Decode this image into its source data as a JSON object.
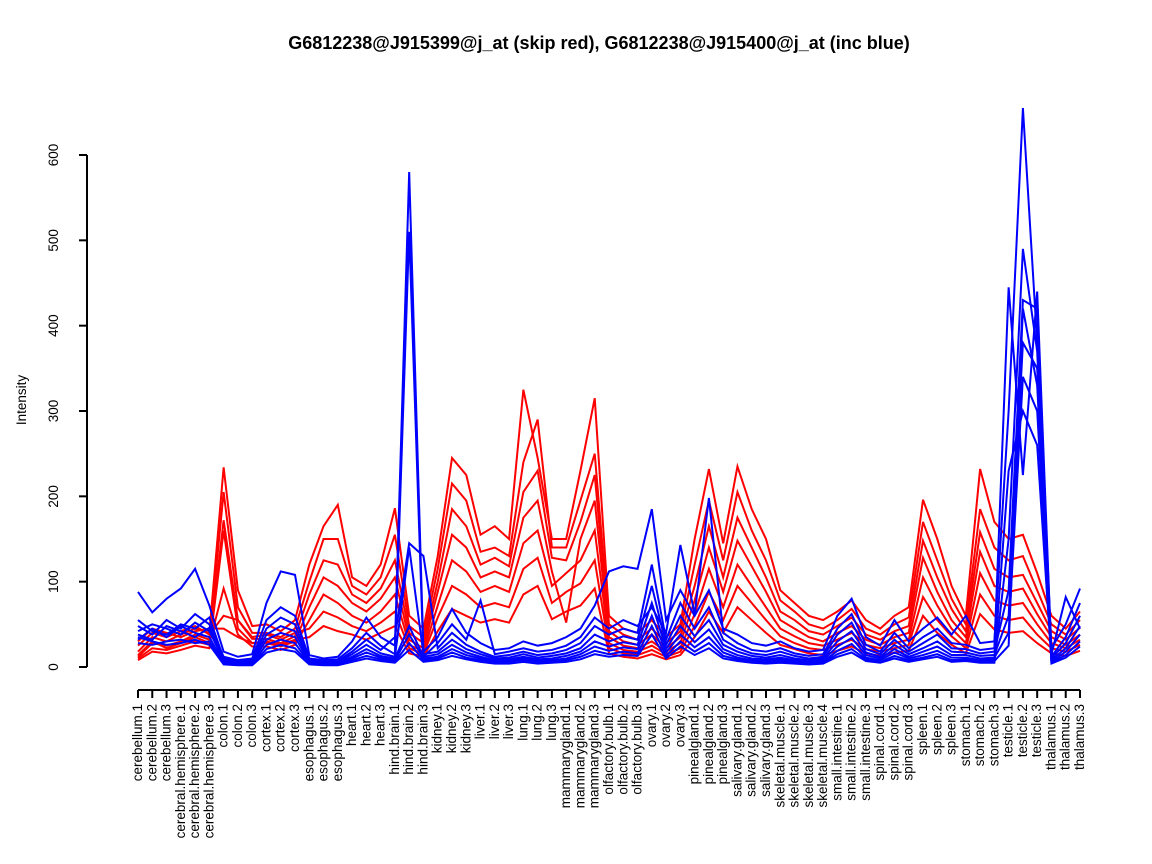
{
  "chart_data": {
    "type": "line",
    "title": "G6812238@J915399@j_at (skip red), G6812238@J915400@j_at (inc blue)",
    "xlabel": "",
    "ylabel": "Intensity",
    "ylim": [
      0,
      660
    ],
    "yticks": [
      0,
      100,
      200,
      300,
      400,
      500,
      600
    ],
    "grid": false,
    "legend": "none",
    "legend_note_red": "G6812238@J915399@j_at (skip red)",
    "legend_note_blue": "G6812238@J915400@j_at (inc blue)",
    "colors": {
      "red": "#FF0000",
      "blue": "#0000FF",
      "axis": "#000000"
    },
    "categories": [
      "cerebellum.1",
      "cerebellum.2",
      "cerebellum.3",
      "cerebral.hemisphere.1",
      "cerebral.hemisphere.2",
      "cerebral.hemisphere.3",
      "colon.1",
      "colon.2",
      "colon.3",
      "cortex.1",
      "cortex.2",
      "cortex.3",
      "esophagus.1",
      "esophagus.2",
      "esophagus.3",
      "heart.1",
      "heart.2",
      "heart.3",
      "hind.brain.1",
      "hind.brain.2",
      "hind.brain.3",
      "kidney.1",
      "kidney.2",
      "kidney.3",
      "liver.1",
      "liver.2",
      "liver.3",
      "lung.1",
      "lung.2",
      "lung.3",
      "mammarygland.1",
      "mammarygland.2",
      "mammarygland.3",
      "olfactory.bulb.1",
      "olfactory.bulb.2",
      "olfactory.bulb.3",
      "ovary.1",
      "ovary.2",
      "ovary.3",
      "pinealgland.1",
      "pinealgland.2",
      "pinealgland.3",
      "salivary.gland.1",
      "salivary.gland.2",
      "salivary.gland.3",
      "skeletal.muscle.1",
      "skeletal.muscle.2",
      "skeletal.muscle.3",
      "skeletal.muscle.4",
      "small.intestine.1",
      "small.intestine.2",
      "small.intestine.3",
      "spinal.cord.1",
      "spinal.cord.2",
      "spinal.cord.3",
      "spleen.1",
      "spleen.2",
      "spleen.3",
      "stomach.1",
      "stomach.2",
      "stomach.3",
      "testicle.1",
      "testicle.2",
      "testicle.3",
      "thalamus.1",
      "thalamus.2",
      "thalamus.3"
    ],
    "series": [
      {
        "name": "red-1",
        "probeset": "G6812238@J915399@j_at",
        "color": "#FF0000",
        "values": [
          18,
          35,
          30,
          38,
          45,
          40,
          234,
          90,
          48,
          50,
          42,
          55,
          120,
          165,
          190,
          105,
          95,
          120,
          186,
          60,
          45,
          130,
          245,
          225,
          155,
          165,
          150,
          325,
          245,
          150,
          150,
          230,
          315,
          60,
          45,
          40,
          55,
          35,
          50,
          150,
          232,
          145,
          235,
          185,
          150,
          90,
          75,
          60,
          55,
          65,
          78,
          55,
          45,
          60,
          70,
          196,
          150,
          95,
          60,
          232,
          170,
          150,
          155,
          110,
          60,
          45,
          65
        ]
      },
      {
        "name": "red-2",
        "probeset": "G6812238@J915399@j_at",
        "color": "#FF0000",
        "values": [
          12,
          28,
          25,
          30,
          38,
          32,
          205,
          70,
          40,
          40,
          35,
          45,
          100,
          150,
          150,
          95,
          85,
          105,
          155,
          48,
          35,
          115,
          215,
          195,
          135,
          140,
          130,
          240,
          290,
          140,
          140,
          195,
          250,
          50,
          38,
          32,
          45,
          28,
          42,
          120,
          195,
          125,
          205,
          160,
          125,
          78,
          65,
          50,
          45,
          55,
          68,
          45,
          38,
          50,
          58,
          170,
          125,
          80,
          50,
          185,
          140,
          125,
          130,
          90,
          50,
          38,
          55
        ]
      },
      {
        "name": "red-3",
        "probeset": "G6812238@J915399@j_at",
        "color": "#FF0000",
        "values": [
          10,
          22,
          20,
          25,
          30,
          26,
          172,
          55,
          33,
          33,
          28,
          36,
          85,
          125,
          120,
          85,
          75,
          92,
          125,
          40,
          28,
          100,
          185,
          165,
          120,
          128,
          118,
          205,
          230,
          128,
          125,
          170,
          225,
          42,
          30,
          26,
          38,
          22,
          35,
          95,
          165,
          105,
          175,
          140,
          105,
          65,
          55,
          42,
          38,
          48,
          58,
          38,
          32,
          42,
          48,
          148,
          105,
          68,
          42,
          158,
          115,
          105,
          108,
          75,
          42,
          32,
          46
        ]
      },
      {
        "name": "red-4",
        "probeset": "G6812238@J915399@j_at",
        "color": "#FF0000",
        "values": [
          8,
          18,
          16,
          20,
          25,
          22,
          160,
          45,
          28,
          28,
          24,
          30,
          70,
          105,
          95,
          75,
          65,
          80,
          105,
          32,
          22,
          88,
          155,
          140,
          105,
          112,
          105,
          175,
          195,
          112,
          52,
          150,
          195,
          35,
          25,
          22,
          30,
          18,
          28,
          78,
          140,
          88,
          148,
          118,
          88,
          55,
          45,
          35,
          30,
          40,
          48,
          32,
          26,
          35,
          40,
          128,
          88,
          55,
          35,
          135,
          95,
          88,
          92,
          62,
          35,
          26,
          38
        ]
      },
      {
        "name": "red-5",
        "probeset": "G6812238@J915399@j_at",
        "color": "#FF0000",
        "values": [
          14,
          30,
          22,
          28,
          35,
          28,
          92,
          38,
          24,
          24,
          20,
          26,
          55,
          85,
          75,
          60,
          52,
          65,
          85,
          26,
          18,
          72,
          125,
          112,
          88,
          95,
          88,
          145,
          160,
          95,
          110,
          125,
          160,
          28,
          20,
          18,
          25,
          15,
          22,
          62,
          115,
          70,
          120,
          95,
          70,
          45,
          36,
          28,
          25,
          32,
          40,
          26,
          22,
          28,
          32,
          105,
          72,
          45,
          28,
          110,
          78,
          72,
          75,
          50,
          28,
          22,
          32
        ]
      },
      {
        "name": "red-6",
        "probeset": "G6812238@J915399@j_at",
        "color": "#FF0000",
        "values": [
          25,
          40,
          35,
          42,
          48,
          38,
          60,
          55,
          35,
          38,
          32,
          40,
          45,
          65,
          58,
          48,
          42,
          52,
          65,
          22,
          15,
          58,
          95,
          85,
          70,
          75,
          70,
          115,
          128,
          75,
          88,
          98,
          125,
          22,
          16,
          14,
          20,
          12,
          18,
          48,
          88,
          55,
          95,
          75,
          55,
          36,
          28,
          22,
          20,
          26,
          32,
          21,
          18,
          22,
          26,
          82,
          55,
          36,
          22,
          85,
          60,
          55,
          58,
          38,
          22,
          18,
          26
        ]
      },
      {
        "name": "red-7",
        "probeset": "G6812238@J915399@j_at",
        "color": "#FF0000",
        "values": [
          30,
          45,
          40,
          35,
          42,
          45,
          45,
          35,
          28,
          30,
          26,
          32,
          35,
          48,
          42,
          38,
          32,
          40,
          48,
          16,
          12,
          42,
          68,
          60,
          52,
          56,
          52,
          85,
          95,
          56,
          65,
          72,
          92,
          16,
          12,
          10,
          15,
          9,
          14,
          35,
          65,
          40,
          70,
          55,
          40,
          26,
          21,
          16,
          14,
          19,
          24,
          16,
          13,
          17,
          19,
          60,
          40,
          26,
          16,
          62,
          44,
          40,
          42,
          28,
          16,
          13,
          19
        ]
      },
      {
        "name": "blue-1",
        "probeset": "G6812238@J915400@j_at",
        "color": "#0000FF",
        "values": [
          88,
          64,
          80,
          92,
          115,
          72,
          18,
          12,
          15,
          75,
          112,
          108,
          14,
          10,
          12,
          30,
          58,
          35,
          25,
          580,
          18,
          35,
          68,
          40,
          28,
          20,
          22,
          30,
          25,
          28,
          35,
          45,
          72,
          112,
          118,
          115,
          185,
          55,
          90,
          60,
          90,
          45,
          38,
          28,
          25,
          30,
          22,
          18,
          20,
          60,
          80,
          35,
          25,
          55,
          30,
          45,
          58,
          38,
          60,
          28,
          30,
          300,
          655,
          380,
          22,
          50,
          92
        ]
      },
      {
        "name": "blue-2",
        "probeset": "G6812238@J915400@j_at",
        "color": "#0000FF",
        "values": [
          48,
          38,
          55,
          45,
          62,
          50,
          12,
          8,
          10,
          55,
          70,
          60,
          10,
          8,
          9,
          22,
          40,
          25,
          15,
          510,
          12,
          28,
          50,
          32,
          78,
          15,
          18,
          22,
          18,
          20,
          25,
          35,
          58,
          45,
          55,
          48,
          70,
          40,
          143,
          62,
          198,
          40,
          28,
          20,
          18,
          22,
          16,
          13,
          15,
          45,
          62,
          26,
          18,
          40,
          22,
          35,
          45,
          28,
          26,
          20,
          22,
          445,
          225,
          440,
          15,
          82,
          45
        ]
      },
      {
        "name": "blue-3",
        "probeset": "G6812238@J915400@j_at",
        "color": "#0000FF",
        "values": [
          55,
          42,
          38,
          50,
          45,
          58,
          10,
          6,
          8,
          45,
          58,
          50,
          8,
          6,
          7,
          18,
          32,
          20,
          35,
          145,
          130,
          22,
          40,
          26,
          18,
          12,
          14,
          18,
          14,
          16,
          20,
          28,
          48,
          38,
          45,
          40,
          120,
          32,
          75,
          45,
          70,
          32,
          22,
          16,
          14,
          18,
          13,
          10,
          12,
          38,
          52,
          21,
          15,
          32,
          18,
          28,
          38,
          22,
          21,
          16,
          18,
          90,
          430,
          420,
          12,
          35,
          75
        ]
      },
      {
        "name": "blue-4",
        "probeset": "G6812238@J915400@j_at",
        "color": "#0000FF",
        "values": [
          42,
          50,
          45,
          38,
          52,
          42,
          8,
          5,
          6,
          38,
          48,
          42,
          7,
          5,
          6,
          15,
          26,
          16,
          12,
          140,
          15,
          18,
          32,
          21,
          15,
          10,
          11,
          15,
          11,
          13,
          16,
          22,
          38,
          30,
          36,
          32,
          95,
          26,
          60,
          36,
          55,
          26,
          18,
          13,
          11,
          14,
          10,
          8,
          10,
          30,
          42,
          17,
          12,
          26,
          15,
          22,
          30,
          18,
          17,
          13,
          14,
          60,
          380,
          350,
          10,
          28,
          60
        ]
      },
      {
        "name": "blue-5",
        "probeset": "G6812238@J915400@j_at",
        "color": "#0000FF",
        "values": [
          38,
          32,
          48,
          42,
          35,
          46,
          6,
          4,
          5,
          32,
          40,
          35,
          6,
          4,
          5,
          12,
          21,
          13,
          10,
          48,
          12,
          15,
          26,
          17,
          12,
          8,
          9,
          12,
          9,
          10,
          13,
          18,
          30,
          24,
          29,
          26,
          75,
          21,
          48,
          29,
          44,
          21,
          14,
          10,
          9,
          11,
          8,
          6,
          8,
          24,
          34,
          14,
          10,
          21,
          12,
          18,
          24,
          14,
          14,
          10,
          11,
          40,
          340,
          300,
          8,
          22,
          48
        ]
      },
      {
        "name": "blue-6",
        "probeset": "G6812238@J915400@j_at",
        "color": "#0000FF",
        "values": [
          32,
          45,
          35,
          48,
          40,
          35,
          5,
          3,
          4,
          26,
          32,
          28,
          5,
          3,
          4,
          10,
          17,
          11,
          8,
          38,
          10,
          12,
          21,
          14,
          10,
          6,
          7,
          10,
          7,
          8,
          10,
          15,
          24,
          19,
          23,
          21,
          60,
          17,
          38,
          23,
          35,
          17,
          11,
          8,
          7,
          9,
          6,
          5,
          6,
          19,
          27,
          11,
          8,
          17,
          10,
          14,
          19,
          11,
          11,
          8,
          9,
          230,
          300,
          260,
          6,
          18,
          38
        ]
      },
      {
        "name": "blue-7",
        "probeset": "G6812238@J915400@j_at",
        "color": "#0000FF",
        "values": [
          28,
          26,
          30,
          32,
          28,
          30,
          4,
          3,
          3,
          21,
          26,
          22,
          4,
          3,
          3,
          8,
          13,
          9,
          6,
          28,
          8,
          10,
          17,
          11,
          8,
          5,
          6,
          8,
          6,
          6,
          8,
          12,
          19,
          15,
          18,
          16,
          48,
          13,
          30,
          18,
          28,
          13,
          9,
          6,
          5,
          7,
          5,
          4,
          5,
          15,
          21,
          9,
          6,
          13,
          8,
          11,
          15,
          8,
          9,
          6,
          7,
          25,
          420,
          330,
          5,
          14,
          30
        ]
      },
      {
        "name": "blue-8",
        "probeset": "G6812238@J915400@j_at",
        "color": "#0000FF",
        "values": [
          35,
          30,
          26,
          28,
          32,
          26,
          3,
          2,
          2,
          17,
          21,
          18,
          3,
          2,
          2,
          6,
          10,
          7,
          5,
          20,
          6,
          8,
          13,
          9,
          6,
          4,
          4,
          6,
          4,
          5,
          6,
          9,
          15,
          12,
          14,
          13,
          38,
          10,
          24,
          14,
          22,
          10,
          7,
          5,
          4,
          5,
          4,
          3,
          4,
          12,
          17,
          7,
          5,
          10,
          6,
          9,
          12,
          6,
          7,
          5,
          5,
          150,
          490,
          370,
          4,
          11,
          24
        ]
      }
    ]
  }
}
